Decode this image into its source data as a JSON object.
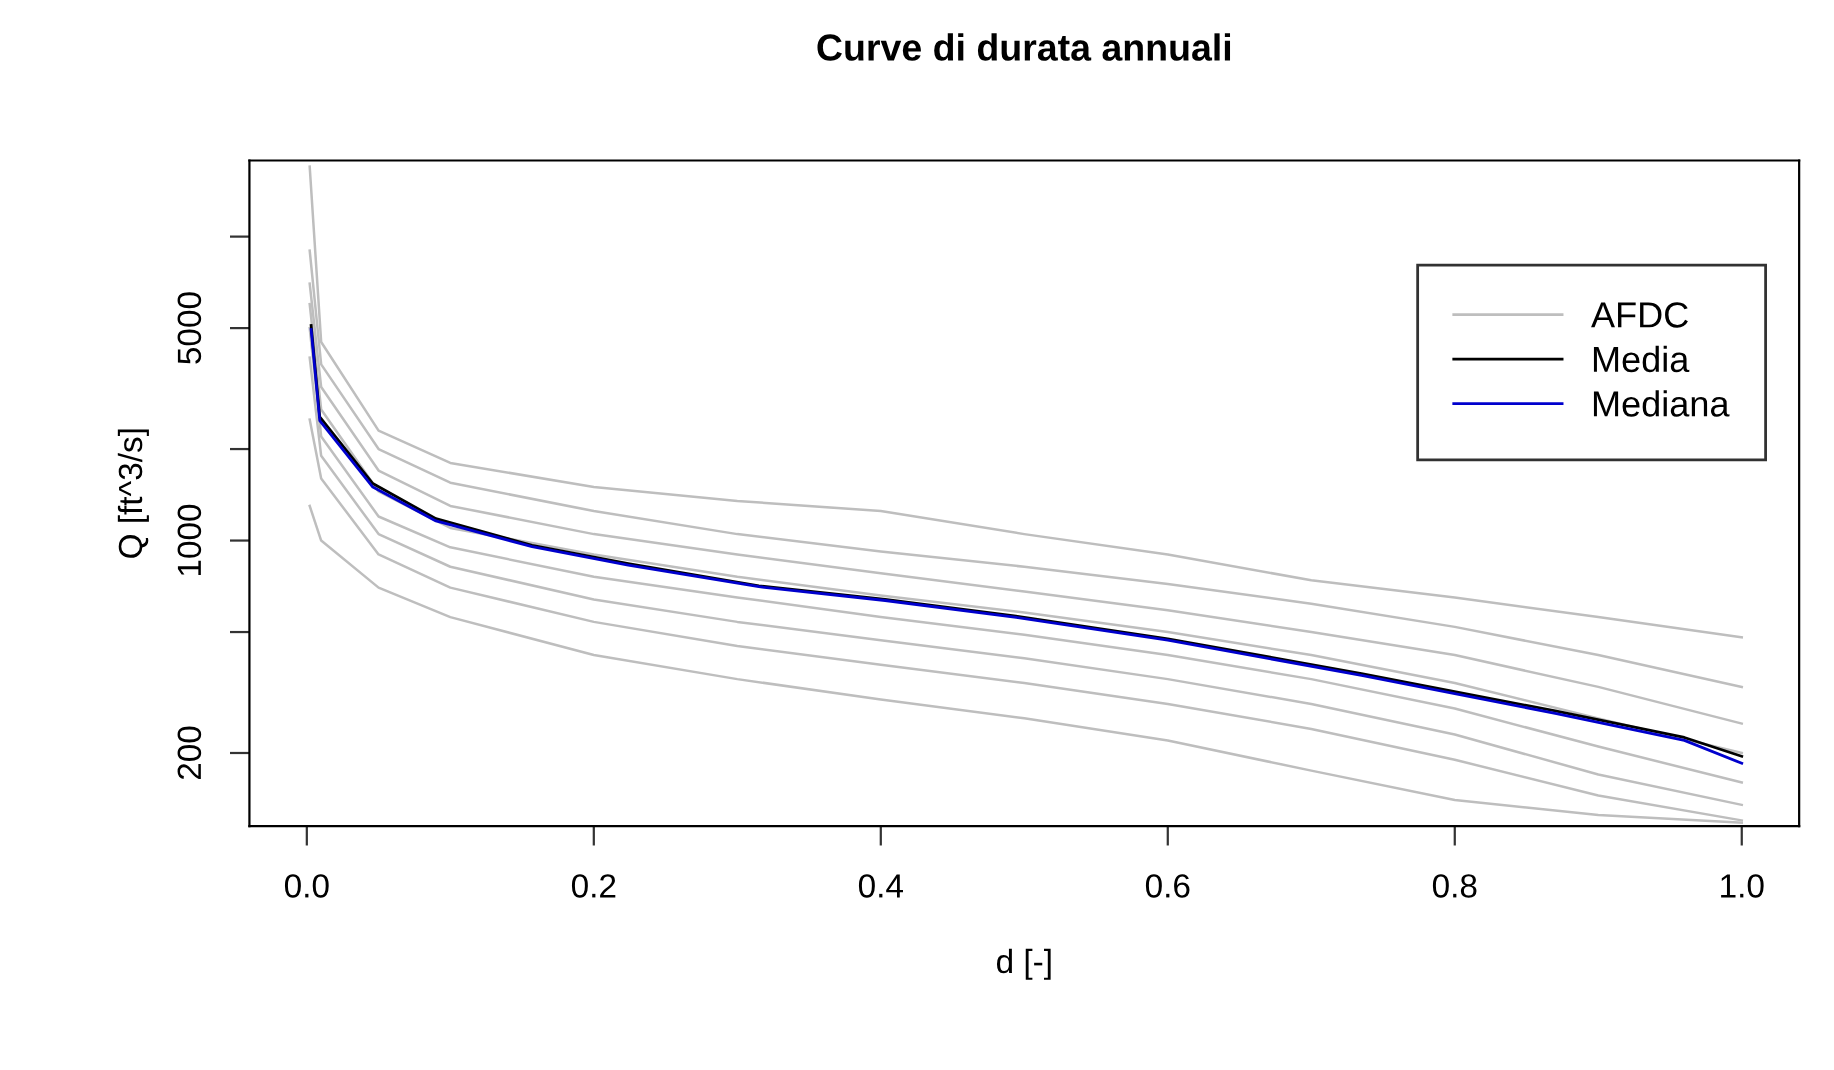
{
  "chart_data": {
    "type": "line",
    "title": "Curve di durata annuali",
    "xlabel": "d [-]",
    "ylabel": "Q [ft^3/s]",
    "x": [
      0.002,
      0.01,
      0.05,
      0.1,
      0.2,
      0.3,
      0.4,
      0.5,
      0.6,
      0.7,
      0.8,
      0.9,
      1.0
    ],
    "series": [
      {
        "name": "AFDC",
        "color": "#bebebe",
        "values": [
          17000,
          4500,
          2300,
          1800,
          1500,
          1350,
          1250,
          1050,
          900,
          740,
          650,
          560,
          480
        ]
      },
      {
        "color": "#bebebe",
        "values": [
          9000,
          3800,
          2000,
          1550,
          1250,
          1050,
          920,
          820,
          720,
          620,
          520,
          420,
          330
        ]
      },
      {
        "color": "#bebebe",
        "values": [
          7000,
          3200,
          1700,
          1300,
          1050,
          900,
          780,
          680,
          590,
          500,
          420,
          330,
          250
        ]
      },
      {
        "color": "#bebebe",
        "values": [
          6000,
          2700,
          1450,
          1100,
          900,
          760,
          660,
          580,
          500,
          420,
          340,
          260,
          200
        ]
      },
      {
        "color": "#bebebe",
        "values": [
          5000,
          2200,
          1200,
          950,
          760,
          650,
          560,
          490,
          420,
          350,
          280,
          210,
          160
        ]
      },
      {
        "color": "#bebebe",
        "values": [
          4000,
          1900,
          1050,
          820,
          640,
          540,
          470,
          410,
          350,
          290,
          230,
          170,
          135
        ]
      },
      {
        "color": "#bebebe",
        "values": [
          2500,
          1600,
          900,
          700,
          540,
          450,
          390,
          340,
          290,
          240,
          190,
          145,
          120
        ]
      },
      {
        "color": "#bebebe",
        "values": [
          1300,
          1000,
          700,
          560,
          420,
          350,
          300,
          260,
          220,
          175,
          140,
          125,
          118
        ]
      },
      {
        "name": "Media",
        "color": "#000000",
        "x": [
          0.003,
          0.009,
          0.046,
          0.09,
          0.157,
          0.224,
          0.315,
          0.403,
          0.493,
          0.6,
          0.735,
          0.87,
          0.96,
          1.0
        ],
        "values": [
          5100,
          2550,
          1540,
          1180,
          965,
          840,
          710,
          640,
          565,
          475,
          365,
          275,
          225,
          195
        ]
      },
      {
        "name": "Mediana",
        "color": "#0000cd",
        "x": [
          0.003,
          0.009,
          0.046,
          0.09,
          0.157,
          0.224,
          0.315,
          0.403,
          0.493,
          0.6,
          0.735,
          0.87,
          0.96,
          1.0
        ],
        "values": [
          4950,
          2480,
          1500,
          1160,
          955,
          830,
          705,
          635,
          560,
          470,
          360,
          270,
          220,
          185
        ]
      }
    ],
    "log": "y",
    "xlim": [
      -0.04,
      1.04
    ],
    "xticks": [
      {
        "value": 0,
        "label": "0.0"
      },
      0.2,
      0.4,
      0.6,
      0.8,
      {
        "value": 1,
        "label": "1.0"
      }
    ],
    "ylim": [
      115,
      17800
    ],
    "yticks": [
      200,
      {
        "value": 500,
        "label": null
      },
      1000,
      {
        "value": 2000,
        "label": null
      },
      5000,
      {
        "value": 10000,
        "label": null
      }
    ],
    "grid": false,
    "legend": "top right",
    "marker": "none",
    "line_style": "solid"
  }
}
